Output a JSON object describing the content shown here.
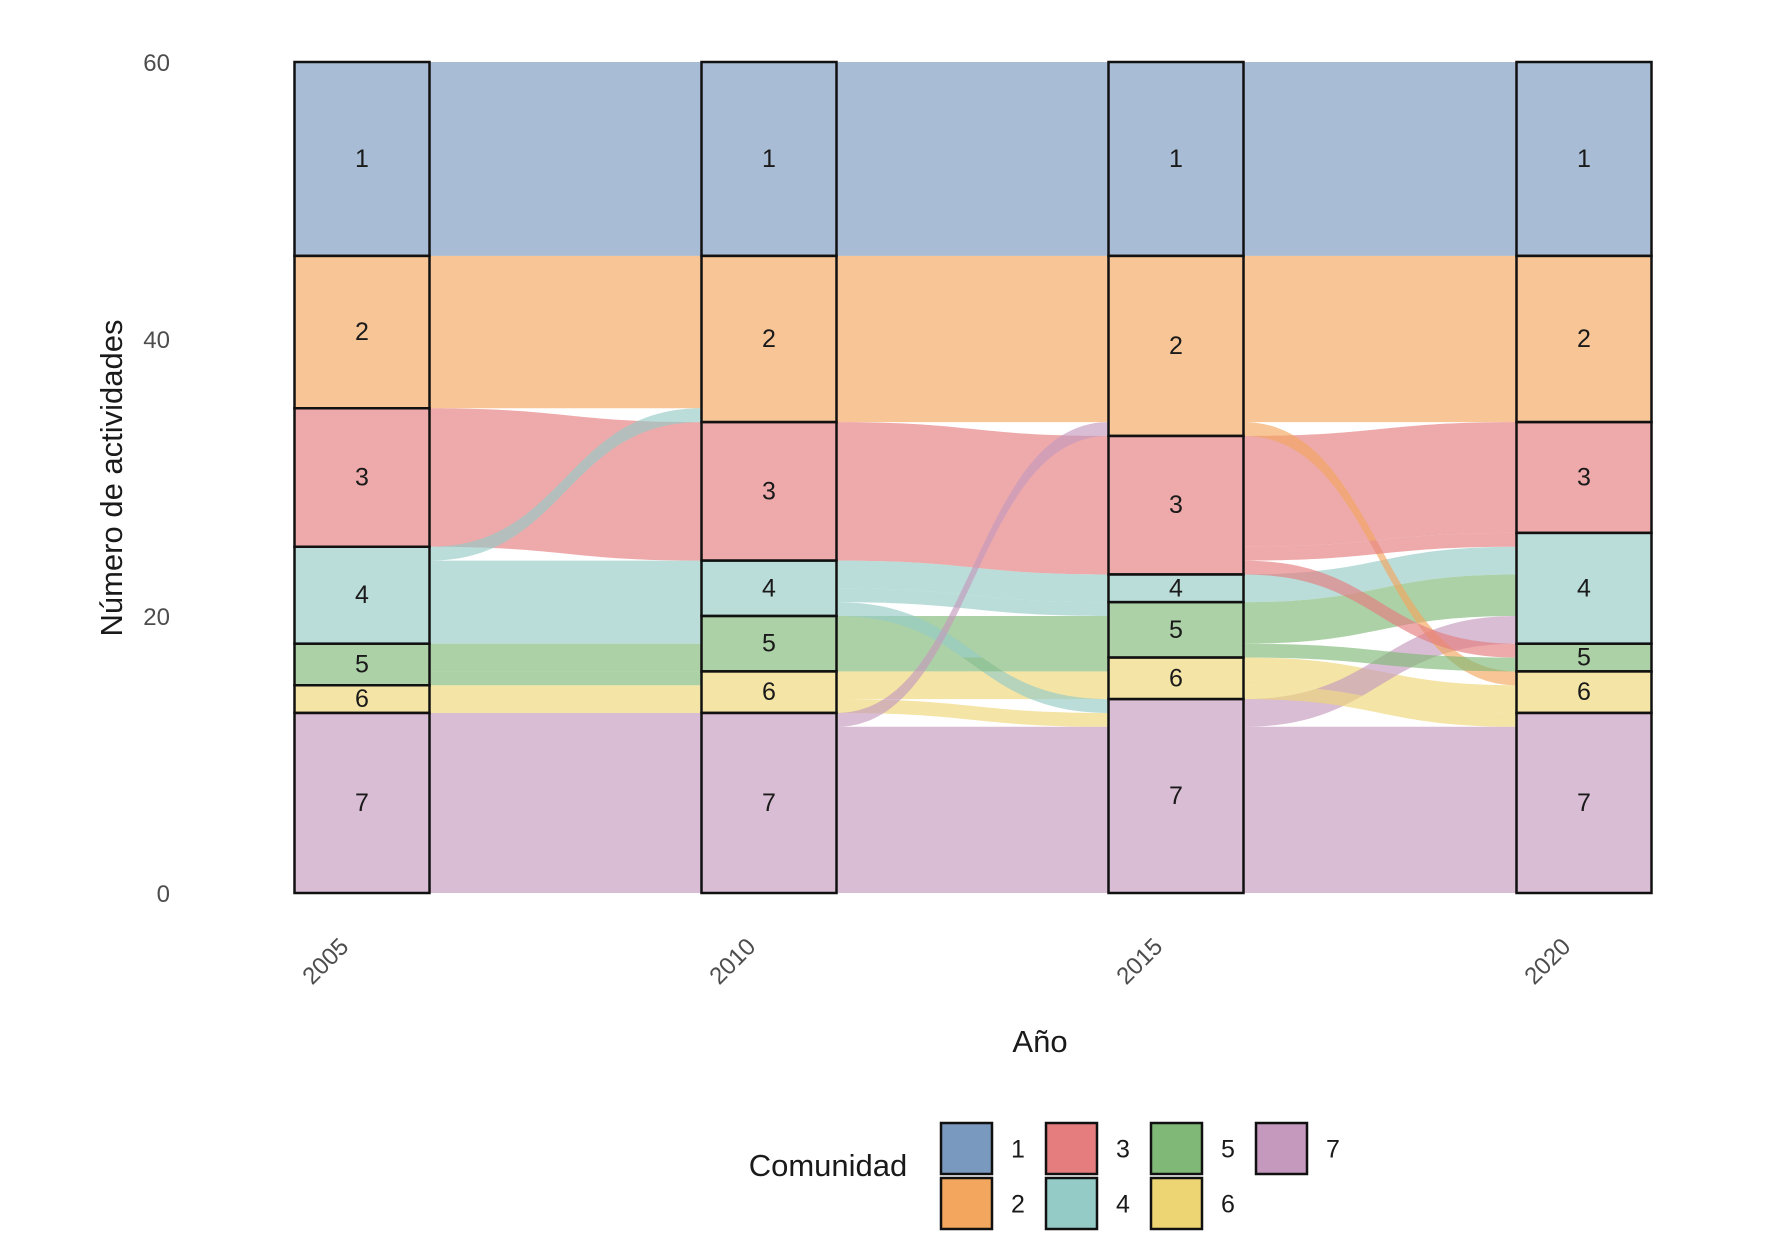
{
  "chart_data": {
    "type": "alluvial",
    "title": "",
    "xlabel": "Año",
    "ylabel": "Número de actividades",
    "ylim": [
      0,
      60
    ],
    "y_ticks": [
      0,
      20,
      40,
      60
    ],
    "x": [
      "2005",
      "2010",
      "2015",
      "2020"
    ],
    "grid": false,
    "legend": {
      "title": "Comunidad",
      "position": "bottom",
      "entries": [
        "1",
        "2",
        "3",
        "4",
        "5",
        "6",
        "7"
      ]
    },
    "colors": {
      "1": "#7A99BF",
      "2": "#F2A65E",
      "3": "#E57C7E",
      "4": "#95CBC6",
      "5": "#80B977",
      "6": "#EED574",
      "7": "#C499BD"
    },
    "strata": {
      "2005": [
        {
          "community": "1",
          "value": 14
        },
        {
          "community": "2",
          "value": 11
        },
        {
          "community": "3",
          "value": 10
        },
        {
          "community": "4",
          "value": 7
        },
        {
          "community": "5",
          "value": 3
        },
        {
          "community": "6",
          "value": 2
        },
        {
          "community": "7",
          "value": 13
        }
      ],
      "2010": [
        {
          "community": "1",
          "value": 14
        },
        {
          "community": "2",
          "value": 12
        },
        {
          "community": "3",
          "value": 10
        },
        {
          "community": "4",
          "value": 4
        },
        {
          "community": "5",
          "value": 4
        },
        {
          "community": "6",
          "value": 3
        },
        {
          "community": "7",
          "value": 13
        }
      ],
      "2015": [
        {
          "community": "1",
          "value": 14
        },
        {
          "community": "2",
          "value": 13
        },
        {
          "community": "3",
          "value": 10
        },
        {
          "community": "4",
          "value": 2
        },
        {
          "community": "5",
          "value": 4
        },
        {
          "community": "6",
          "value": 3
        },
        {
          "community": "7",
          "value": 14
        }
      ],
      "2020": [
        {
          "community": "1",
          "value": 14
        },
        {
          "community": "2",
          "value": 12
        },
        {
          "community": "3",
          "value": 8
        },
        {
          "community": "4",
          "value": 8
        },
        {
          "community": "5",
          "value": 2
        },
        {
          "community": "6",
          "value": 3
        },
        {
          "community": "7",
          "value": 13
        }
      ]
    },
    "flows": [
      {
        "from_year": "2005",
        "to_year": "2010",
        "from": "1",
        "to": "1",
        "value": 14
      },
      {
        "from_year": "2005",
        "to_year": "2010",
        "from": "2",
        "to": "2",
        "value": 11
      },
      {
        "from_year": "2005",
        "to_year": "2010",
        "from": "3",
        "to": "3",
        "value": 10
      },
      {
        "from_year": "2005",
        "to_year": "2010",
        "from": "4",
        "to": "2",
        "value": 1
      },
      {
        "from_year": "2005",
        "to_year": "2010",
        "from": "4",
        "to": "4",
        "value": 4
      },
      {
        "from_year": "2005",
        "to_year": "2010",
        "from": "4",
        "to": "5",
        "value": 2
      },
      {
        "from_year": "2005",
        "to_year": "2010",
        "from": "5",
        "to": "5",
        "value": 2
      },
      {
        "from_year": "2005",
        "to_year": "2010",
        "from": "5",
        "to": "6",
        "value": 1
      },
      {
        "from_year": "2005",
        "to_year": "2010",
        "from": "6",
        "to": "6",
        "value": 2
      },
      {
        "from_year": "2005",
        "to_year": "2010",
        "from": "7",
        "to": "7",
        "value": 13
      },
      {
        "from_year": "2010",
        "to_year": "2015",
        "from": "1",
        "to": "1",
        "value": 14
      },
      {
        "from_year": "2010",
        "to_year": "2015",
        "from": "2",
        "to": "2",
        "value": 12
      },
      {
        "from_year": "2010",
        "to_year": "2015",
        "from": "3",
        "to": "3",
        "value": 10
      },
      {
        "from_year": "2010",
        "to_year": "2015",
        "from": "4",
        "to": "4",
        "value": 2
      },
      {
        "from_year": "2010",
        "to_year": "2015",
        "from": "4",
        "to": "5",
        "value": 1
      },
      {
        "from_year": "2010",
        "to_year": "2015",
        "from": "4",
        "to": "7",
        "value": 1
      },
      {
        "from_year": "2010",
        "to_year": "2015",
        "from": "5",
        "to": "5",
        "value": 3
      },
      {
        "from_year": "2010",
        "to_year": "2015",
        "from": "5",
        "to": "6",
        "value": 1
      },
      {
        "from_year": "2010",
        "to_year": "2015",
        "from": "6",
        "to": "6",
        "value": 2
      },
      {
        "from_year": "2010",
        "to_year": "2015",
        "from": "6",
        "to": "7",
        "value": 1
      },
      {
        "from_year": "2010",
        "to_year": "2015",
        "from": "7",
        "to": "2",
        "value": 1
      },
      {
        "from_year": "2010",
        "to_year": "2015",
        "from": "7",
        "to": "7",
        "value": 12
      },
      {
        "from_year": "2015",
        "to_year": "2020",
        "from": "1",
        "to": "1",
        "value": 14
      },
      {
        "from_year": "2015",
        "to_year": "2020",
        "from": "2",
        "to": "2",
        "value": 12
      },
      {
        "from_year": "2015",
        "to_year": "2020",
        "from": "2",
        "to": "6",
        "value": 1
      },
      {
        "from_year": "2015",
        "to_year": "2020",
        "from": "3",
        "to": "3",
        "value": 8
      },
      {
        "from_year": "2015",
        "to_year": "2020",
        "from": "3",
        "to": "4",
        "value": 1
      },
      {
        "from_year": "2015",
        "to_year": "2020",
        "from": "3",
        "to": "5",
        "value": 1
      },
      {
        "from_year": "2015",
        "to_year": "2020",
        "from": "4",
        "to": "4",
        "value": 2
      },
      {
        "from_year": "2015",
        "to_year": "2020",
        "from": "5",
        "to": "4",
        "value": 3
      },
      {
        "from_year": "2015",
        "to_year": "2020",
        "from": "5",
        "to": "5",
        "value": 1
      },
      {
        "from_year": "2015",
        "to_year": "2020",
        "from": "6",
        "to": "6",
        "value": 2
      },
      {
        "from_year": "2015",
        "to_year": "2020",
        "from": "6",
        "to": "7",
        "value": 1
      },
      {
        "from_year": "2015",
        "to_year": "2020",
        "from": "7",
        "to": "4",
        "value": 2
      },
      {
        "from_year": "2015",
        "to_year": "2020",
        "from": "7",
        "to": "7",
        "value": 12
      }
    ]
  }
}
